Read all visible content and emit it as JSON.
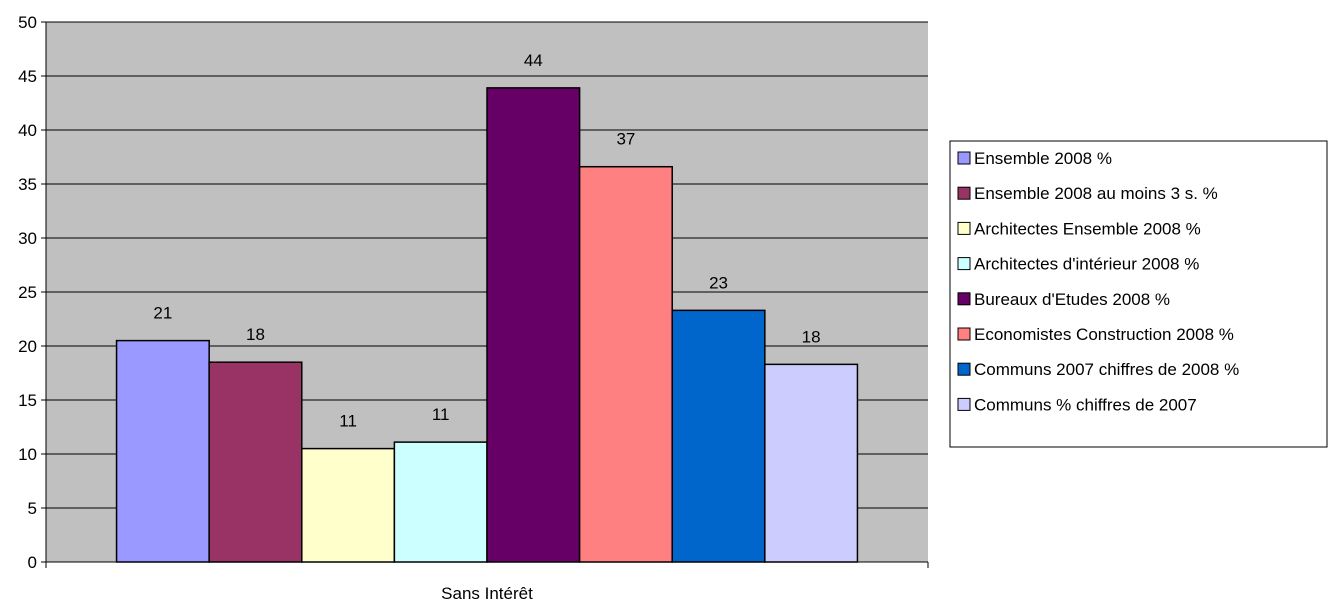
{
  "chart_data": {
    "type": "bar",
    "categories": [
      "Sans Intérêt"
    ],
    "ylim": [
      0,
      50
    ],
    "yticks": [
      0,
      5,
      10,
      15,
      20,
      25,
      30,
      35,
      40,
      45,
      50
    ],
    "grid": true,
    "legend_position": "right",
    "plot_background": "#C0C0C0",
    "series": [
      {
        "name": "Ensemble 2008 %",
        "values": [
          20.5
        ],
        "label": "21",
        "color": "#9999FF"
      },
      {
        "name": "Ensemble 2008 au moins 3 s. %",
        "values": [
          18.5
        ],
        "label": "18",
        "color": "#993366"
      },
      {
        "name": "Architectes Ensemble 2008 %",
        "values": [
          10.5
        ],
        "label": "11",
        "color": "#FFFFCC"
      },
      {
        "name": "Architectes d'intérieur 2008 %",
        "values": [
          11.1
        ],
        "label": "11",
        "color": "#CCFFFF"
      },
      {
        "name": "Bureaux d'Etudes 2008 %",
        "values": [
          43.9
        ],
        "label": "44",
        "color": "#660066"
      },
      {
        "name": "Economistes  Construction 2008 %",
        "values": [
          36.6
        ],
        "label": "37",
        "color": "#FF8080"
      },
      {
        "name": "Communs 2007 chiffres de 2008 %",
        "values": [
          23.3
        ],
        "label": "23",
        "color": "#0066CC"
      },
      {
        "name": "Communs % chiffres de 2007",
        "values": [
          18.3
        ],
        "label": "18",
        "color": "#CCCCFF"
      }
    ]
  }
}
